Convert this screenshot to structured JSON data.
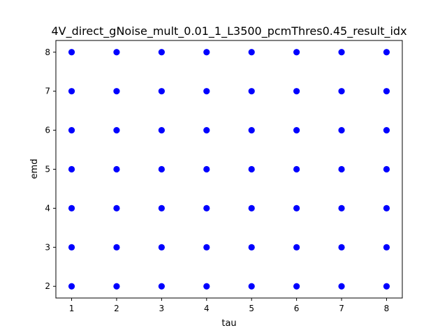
{
  "chart_data": {
    "type": "scatter",
    "title": "4V_direct_gNoise_mult_0.01_1_L3500_pcmThres0.45_result_idx",
    "xlabel": "tau",
    "ylabel": "emd",
    "xlim": [
      0.65,
      8.35
    ],
    "ylim": [
      1.7,
      8.3
    ],
    "xticks": [
      1,
      2,
      3,
      4,
      5,
      6,
      7,
      8
    ],
    "yticks": [
      2,
      3,
      4,
      5,
      6,
      7,
      8
    ],
    "grid": false,
    "marker_color": "#0000ff",
    "series": [
      {
        "x": [
          1,
          2,
          3,
          4,
          5,
          6,
          7,
          8,
          1,
          2,
          3,
          4,
          5,
          6,
          7,
          8,
          1,
          2,
          3,
          4,
          5,
          6,
          7,
          8,
          1,
          2,
          3,
          4,
          5,
          6,
          7,
          8,
          1,
          2,
          3,
          4,
          5,
          6,
          7,
          8,
          1,
          2,
          3,
          4,
          5,
          6,
          7,
          8,
          1,
          2,
          3,
          4,
          5,
          6,
          7,
          8
        ],
        "y": [
          2,
          2,
          2,
          2,
          2,
          2,
          2,
          2,
          3,
          3,
          3,
          3,
          3,
          3,
          3,
          3,
          4,
          4,
          4,
          4,
          4,
          4,
          4,
          4,
          5,
          5,
          5,
          5,
          5,
          5,
          5,
          5,
          6,
          6,
          6,
          6,
          6,
          6,
          6,
          6,
          7,
          7,
          7,
          7,
          7,
          7,
          7,
          7,
          8,
          8,
          8,
          8,
          8,
          8,
          8,
          8
        ]
      }
    ]
  }
}
